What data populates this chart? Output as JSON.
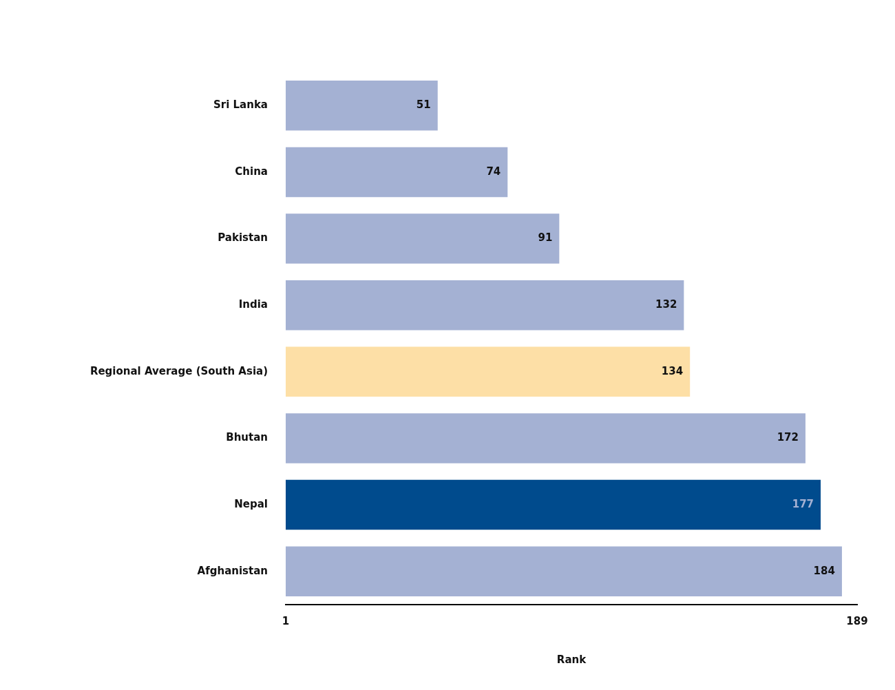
{
  "chart_data": {
    "type": "bar",
    "orientation": "horizontal",
    "xlabel": "Rank",
    "categories": [
      "Sri Lanka",
      "China",
      "Pakistan",
      "India",
      "Regional Average (South Asia)",
      "Bhutan",
      "Nepal",
      "Afghanistan"
    ],
    "values": [
      51,
      74,
      91,
      132,
      134,
      172,
      177,
      184
    ],
    "colors": [
      "#a4b1d3",
      "#a4b1d3",
      "#a4b1d3",
      "#a4b1d3",
      "#fddfa6",
      "#a4b1d3",
      "#004b8d",
      "#a4b1d3"
    ],
    "xlim": [
      1,
      189
    ],
    "xticks": [
      1,
      189
    ],
    "data_labels": true,
    "grid": false,
    "legend": false
  }
}
